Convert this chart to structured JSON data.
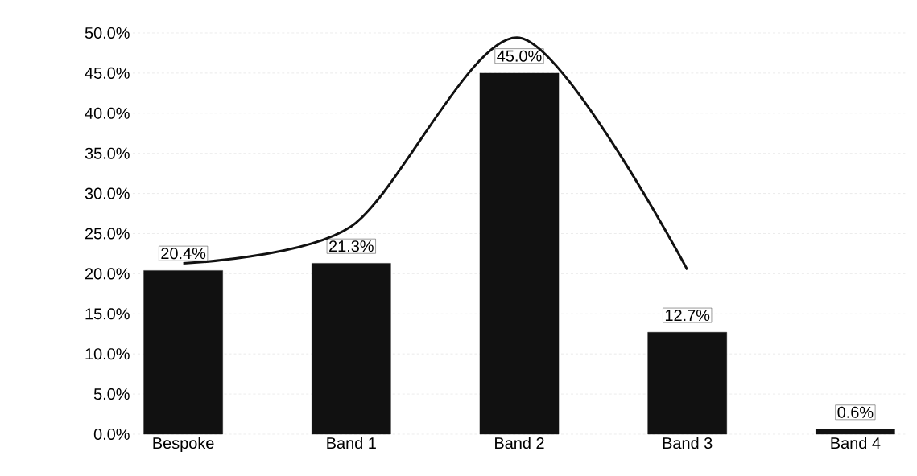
{
  "chart_data": {
    "type": "bar",
    "categories": [
      "Bespoke",
      "Band 1",
      "Band 2",
      "Band 3",
      "Band 4"
    ],
    "series": [
      {
        "color": "#111111",
        "values": [
          20.4,
          21.3,
          45.0,
          12.7,
          0.6
        ],
        "value_labels": [
          "20.4%",
          "21.3%",
          "45.0%",
          "12.7%",
          "0.6%"
        ]
      },
      {
        "type": "line",
        "color": "#111111",
        "values": [
          21.3,
          25.9,
          49.4,
          20.5,
          null
        ]
      }
    ],
    "ylim": [
      0,
      50
    ],
    "yticks": [
      {
        "value": 0,
        "label": "0.0%"
      },
      {
        "value": 5,
        "label": "5.0%"
      },
      {
        "value": 10,
        "label": "10.0%"
      },
      {
        "value": 15,
        "label": "15.0%"
      },
      {
        "value": 20,
        "label": "20.0%"
      },
      {
        "value": 25,
        "label": "25.0%"
      },
      {
        "value": 30,
        "label": "30.0%"
      },
      {
        "value": 35,
        "label": "35.0%"
      },
      {
        "value": 40,
        "label": "40.0%"
      },
      {
        "value": 45,
        "label": "45.0%"
      },
      {
        "value": 50,
        "label": "50.0%"
      }
    ],
    "grid": "y"
  }
}
